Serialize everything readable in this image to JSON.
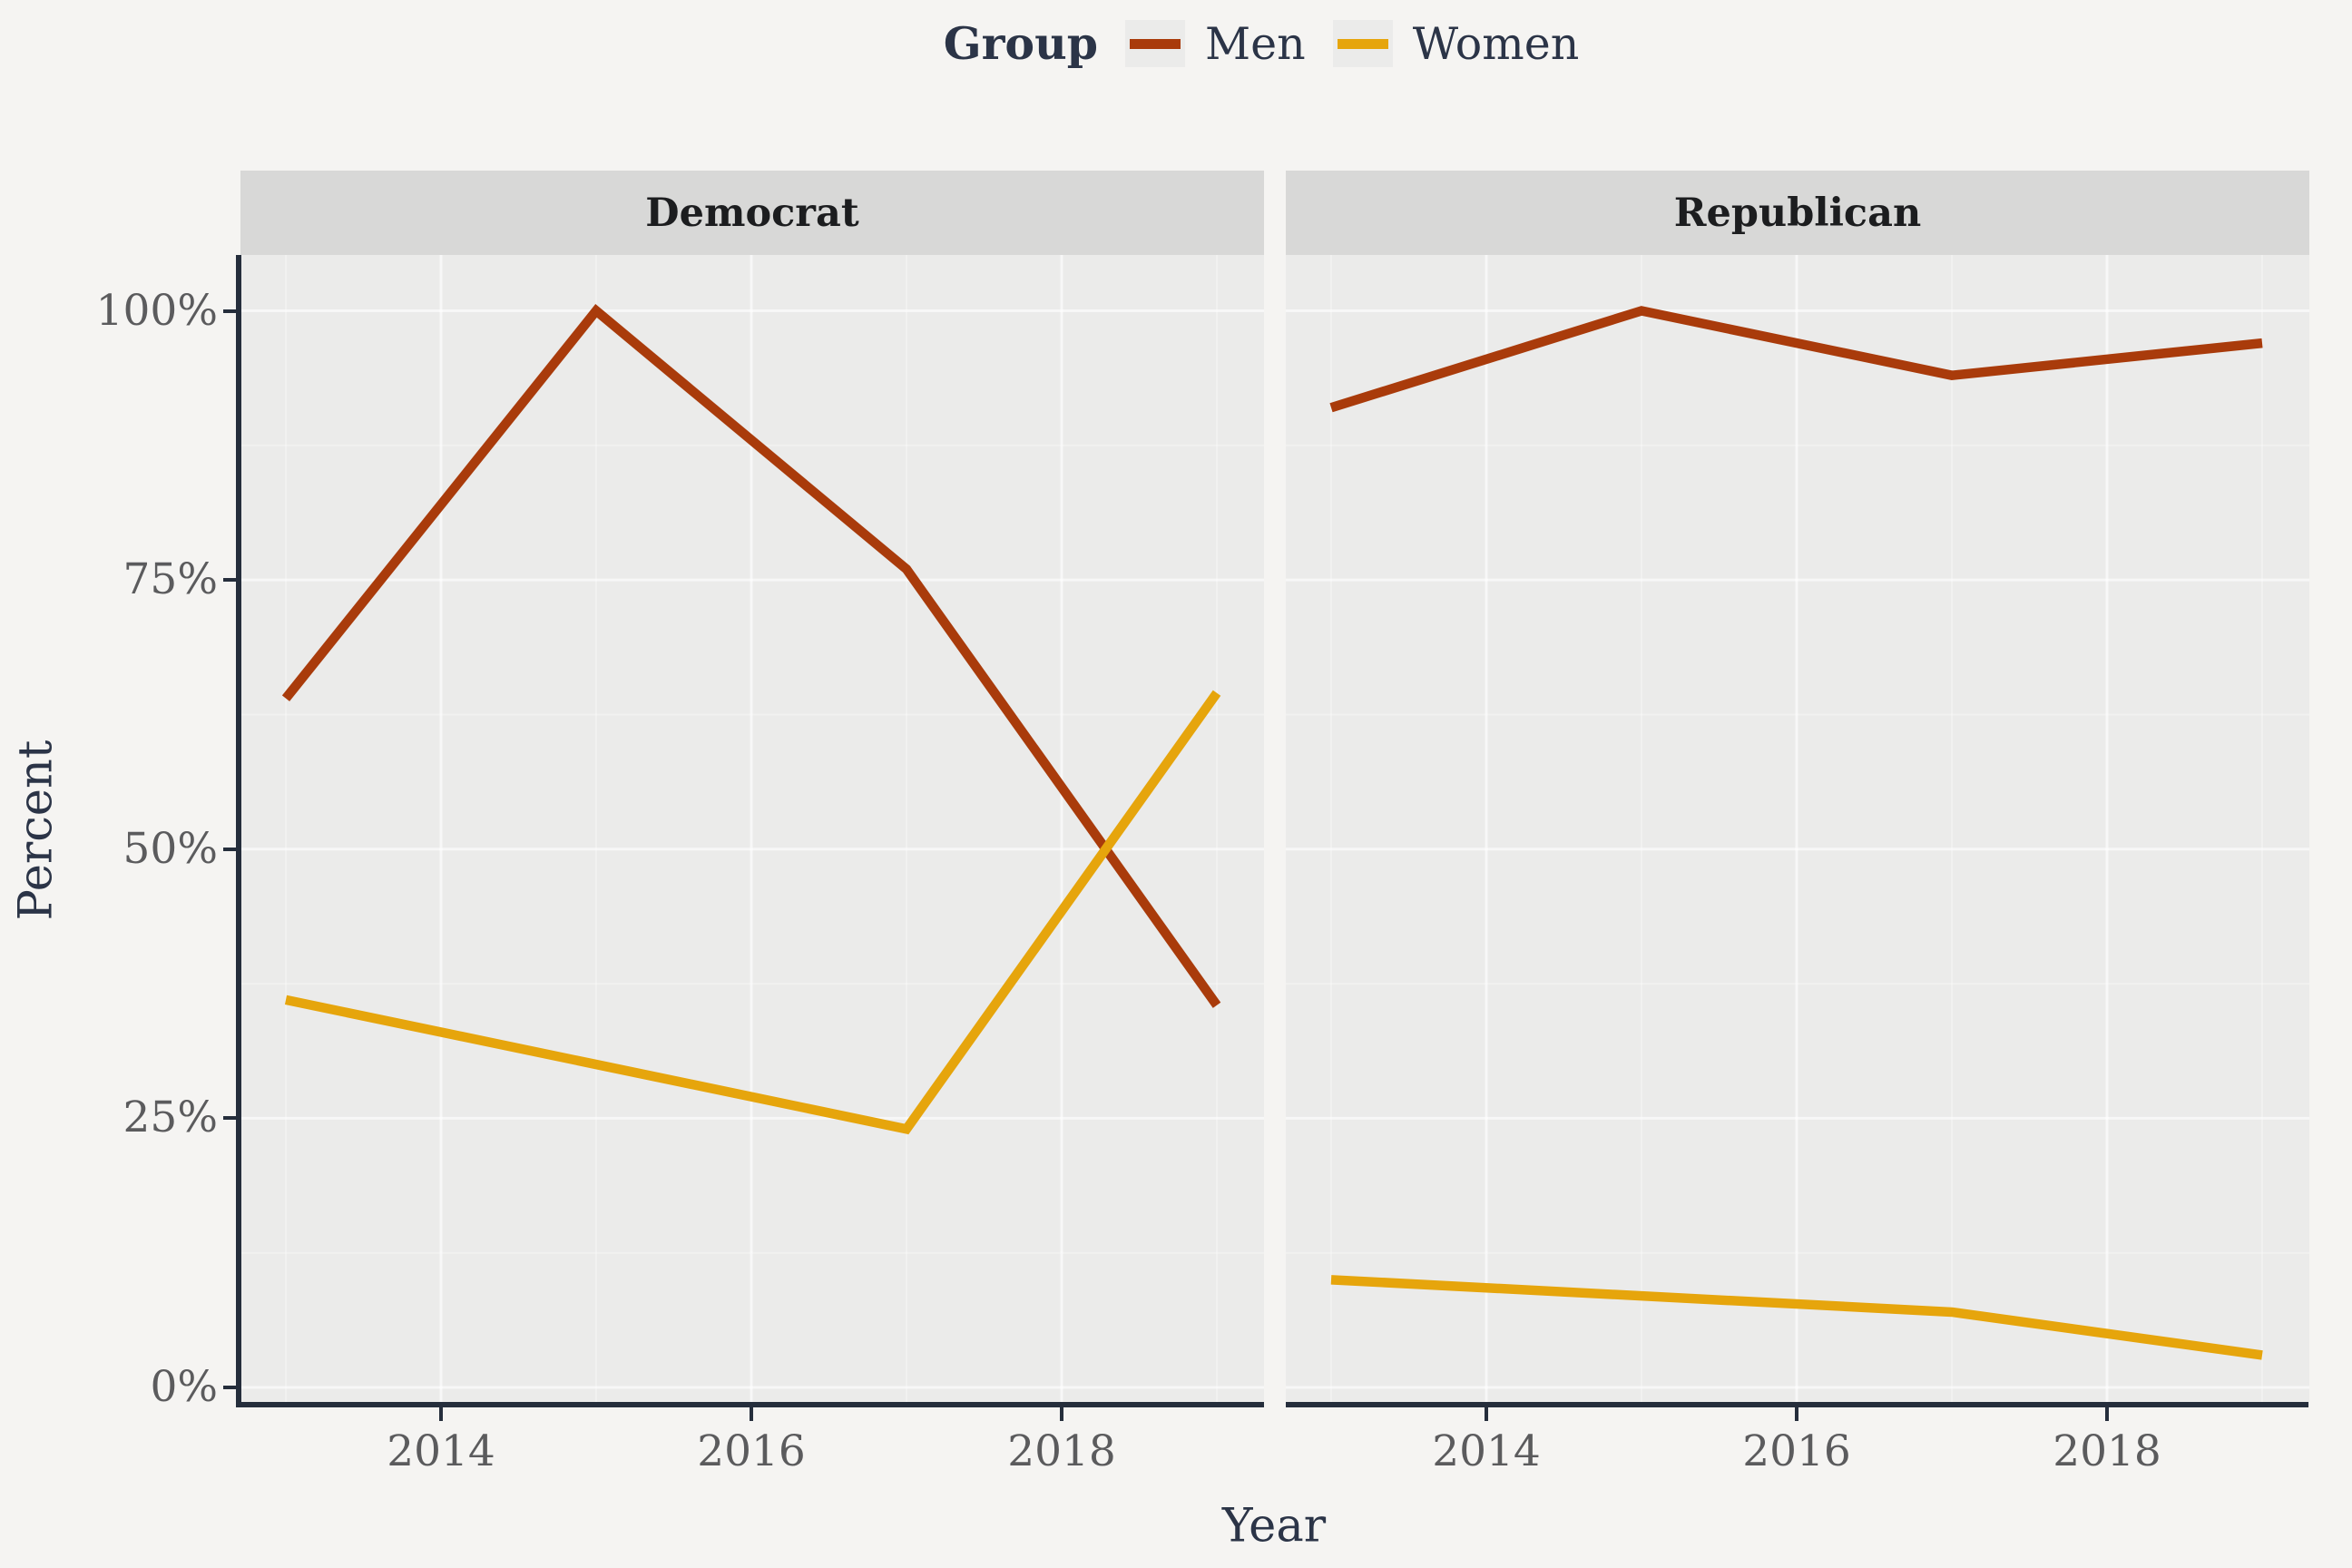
{
  "legend": {
    "title": "Group",
    "items": [
      {
        "label": "Men",
        "color": "#A93B0B"
      },
      {
        "label": "Women",
        "color": "#E6A50C"
      }
    ]
  },
  "chart_data": {
    "type": "line",
    "x": [
      2013,
      2015,
      2017,
      2019
    ],
    "facets": [
      {
        "label": "Democrat",
        "series": [
          {
            "name": "Men",
            "values": [
              64,
              100,
              76,
              35.5
            ]
          },
          {
            "name": "Women",
            "values": [
              36,
              30,
              24,
              64.5
            ]
          }
        ]
      },
      {
        "label": "Republican",
        "series": [
          {
            "name": "Men",
            "values": [
              91,
              100,
              94,
              97
            ]
          },
          {
            "name": "Women",
            "values": [
              10,
              8.5,
              7,
              3
            ]
          }
        ]
      }
    ],
    "xlabel": "Year",
    "ylabel": "Percent",
    "ylim": [
      0,
      100
    ],
    "y_tick_values": [
      0,
      25,
      50,
      75,
      100
    ],
    "y_tick_labels": [
      "0%",
      "25%",
      "50%",
      "75%",
      "100%"
    ],
    "y_minor_values": [
      12.5,
      37.5,
      62.5,
      87.5
    ],
    "x_tick_values": [
      2014,
      2016,
      2018
    ],
    "x_tick_labels": [
      "2014",
      "2016",
      "2018"
    ],
    "x_minor_values": [
      2013,
      2015,
      2017,
      2019
    ],
    "grid": "on",
    "legend_position": "top",
    "colors": {
      "background": "#F5F4F2",
      "panel": "#EBEBEA",
      "strip": "#D8D8D7",
      "axis": "#252E3C",
      "tick_label": "#5B5B5D",
      "title_text": "#2B3447",
      "grid_major": "rgba(255,255,255,0.6)",
      "grid_minor": "rgba(255,255,255,0.3)"
    }
  }
}
